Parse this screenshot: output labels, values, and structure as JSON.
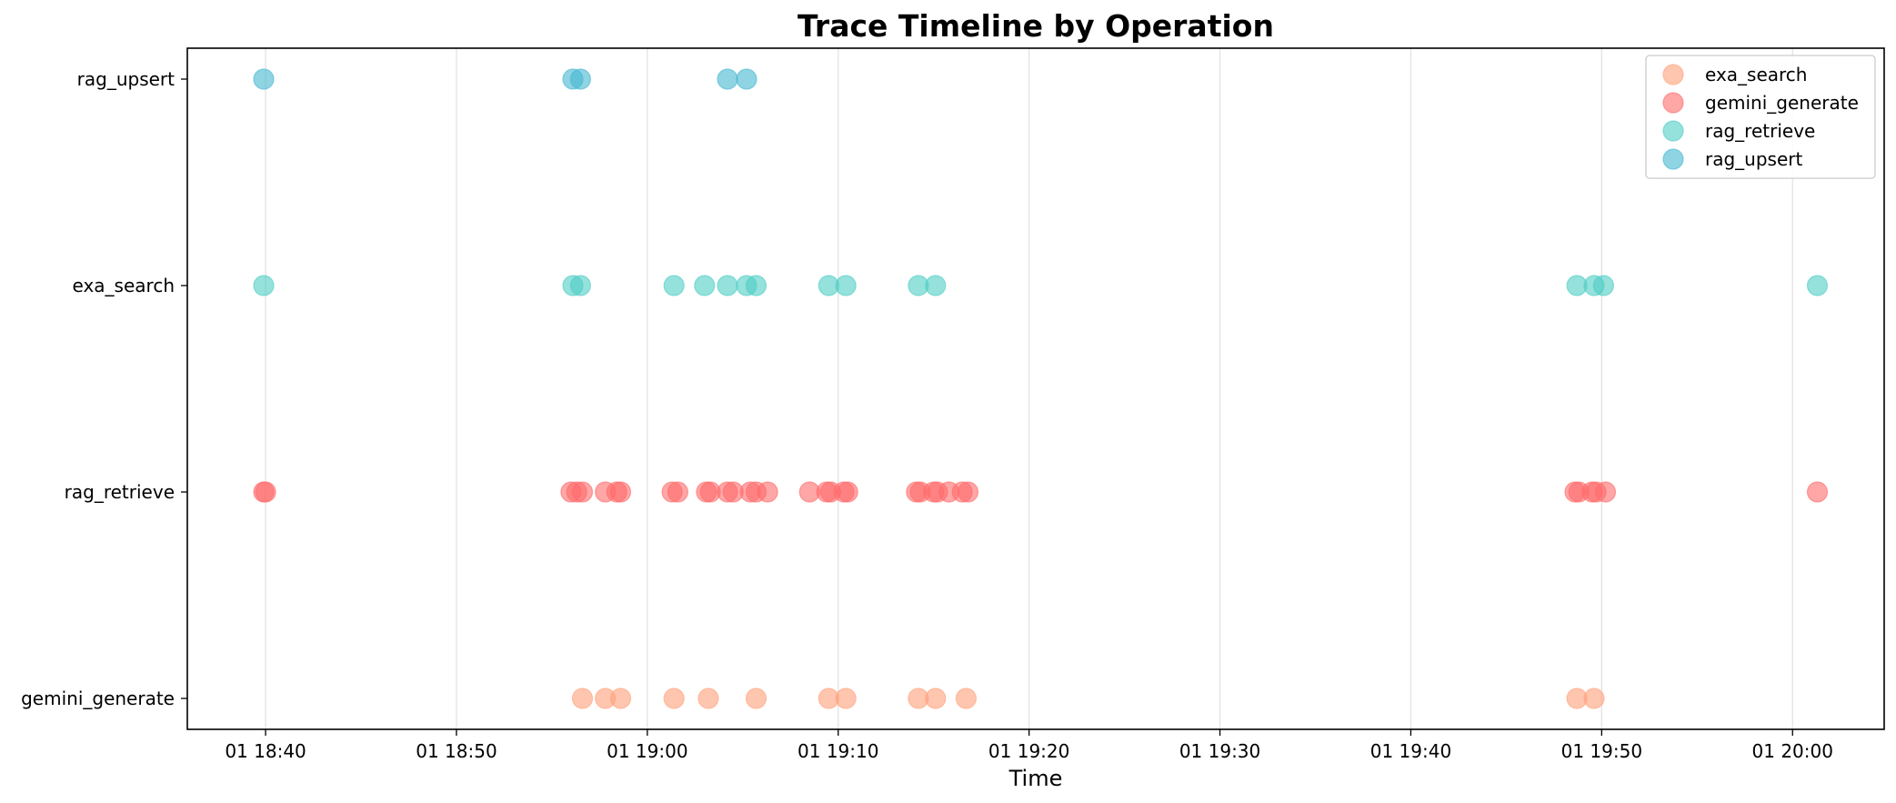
{
  "chart_data": {
    "type": "scatter",
    "title": "Trace Timeline by Operation",
    "xlabel": "Time",
    "ylabel": "",
    "x_ticks": [
      "01 18:40",
      "01 18:50",
      "01 19:00",
      "01 19:10",
      "01 19:20",
      "01 19:30",
      "01 19:40",
      "01 19:50",
      "01 20:00"
    ],
    "x_tick_minutes": [
      0,
      10,
      20,
      30,
      40,
      50,
      60,
      70,
      80
    ],
    "xlim_minutes": [
      -4.1,
      84.8
    ],
    "y_categories": [
      "gemini_generate",
      "rag_retrieve",
      "exa_search",
      "rag_upsert"
    ],
    "grid": "x",
    "legend_position": "top-right",
    "marker_size": "large",
    "alpha": 0.6,
    "series": [
      {
        "name": "exa_search",
        "color": "#FFA07A",
        "points": [
          {
            "x": 16.6,
            "y": "gemini_generate"
          },
          {
            "x": 17.8,
            "y": "gemini_generate"
          },
          {
            "x": 18.6,
            "y": "gemini_generate"
          },
          {
            "x": 21.4,
            "y": "gemini_generate"
          },
          {
            "x": 23.2,
            "y": "gemini_generate"
          },
          {
            "x": 25.7,
            "y": "gemini_generate"
          },
          {
            "x": 29.5,
            "y": "gemini_generate"
          },
          {
            "x": 30.4,
            "y": "gemini_generate"
          },
          {
            "x": 34.2,
            "y": "gemini_generate"
          },
          {
            "x": 35.1,
            "y": "gemini_generate"
          },
          {
            "x": 36.7,
            "y": "gemini_generate"
          },
          {
            "x": 68.7,
            "y": "gemini_generate"
          },
          {
            "x": 69.6,
            "y": "gemini_generate"
          }
        ]
      },
      {
        "name": "gemini_generate",
        "color": "#FF6B6B",
        "points": [
          {
            "x": -0.1,
            "y": "rag_retrieve"
          },
          {
            "x": 0.0,
            "y": "rag_retrieve"
          },
          {
            "x": 16.0,
            "y": "rag_retrieve"
          },
          {
            "x": 16.3,
            "y": "rag_retrieve"
          },
          {
            "x": 16.6,
            "y": "rag_retrieve"
          },
          {
            "x": 17.8,
            "y": "rag_retrieve"
          },
          {
            "x": 18.4,
            "y": "rag_retrieve"
          },
          {
            "x": 18.6,
            "y": "rag_retrieve"
          },
          {
            "x": 21.3,
            "y": "rag_retrieve"
          },
          {
            "x": 21.6,
            "y": "rag_retrieve"
          },
          {
            "x": 23.1,
            "y": "rag_retrieve"
          },
          {
            "x": 23.3,
            "y": "rag_retrieve"
          },
          {
            "x": 24.2,
            "y": "rag_retrieve"
          },
          {
            "x": 24.5,
            "y": "rag_retrieve"
          },
          {
            "x": 25.4,
            "y": "rag_retrieve"
          },
          {
            "x": 25.7,
            "y": "rag_retrieve"
          },
          {
            "x": 26.3,
            "y": "rag_retrieve"
          },
          {
            "x": 28.5,
            "y": "rag_retrieve"
          },
          {
            "x": 29.4,
            "y": "rag_retrieve"
          },
          {
            "x": 29.6,
            "y": "rag_retrieve"
          },
          {
            "x": 30.3,
            "y": "rag_retrieve"
          },
          {
            "x": 30.5,
            "y": "rag_retrieve"
          },
          {
            "x": 34.1,
            "y": "rag_retrieve"
          },
          {
            "x": 34.3,
            "y": "rag_retrieve"
          },
          {
            "x": 35.0,
            "y": "rag_retrieve"
          },
          {
            "x": 35.2,
            "y": "rag_retrieve"
          },
          {
            "x": 35.8,
            "y": "rag_retrieve"
          },
          {
            "x": 36.5,
            "y": "rag_retrieve"
          },
          {
            "x": 36.8,
            "y": "rag_retrieve"
          },
          {
            "x": 68.6,
            "y": "rag_retrieve"
          },
          {
            "x": 68.8,
            "y": "rag_retrieve"
          },
          {
            "x": 69.5,
            "y": "rag_retrieve"
          },
          {
            "x": 69.7,
            "y": "rag_retrieve"
          },
          {
            "x": 70.2,
            "y": "rag_retrieve"
          },
          {
            "x": 81.3,
            "y": "rag_retrieve"
          }
        ]
      },
      {
        "name": "rag_retrieve",
        "color": "#4ECDC4",
        "points": [
          {
            "x": -0.1,
            "y": "exa_search"
          },
          {
            "x": 16.1,
            "y": "exa_search"
          },
          {
            "x": 16.5,
            "y": "exa_search"
          },
          {
            "x": 21.4,
            "y": "exa_search"
          },
          {
            "x": 23.0,
            "y": "exa_search"
          },
          {
            "x": 24.2,
            "y": "exa_search"
          },
          {
            "x": 25.2,
            "y": "exa_search"
          },
          {
            "x": 25.7,
            "y": "exa_search"
          },
          {
            "x": 29.5,
            "y": "exa_search"
          },
          {
            "x": 30.4,
            "y": "exa_search"
          },
          {
            "x": 34.2,
            "y": "exa_search"
          },
          {
            "x": 35.1,
            "y": "exa_search"
          },
          {
            "x": 68.7,
            "y": "exa_search"
          },
          {
            "x": 69.6,
            "y": "exa_search"
          },
          {
            "x": 70.1,
            "y": "exa_search"
          },
          {
            "x": 81.3,
            "y": "exa_search"
          }
        ]
      },
      {
        "name": "rag_upsert",
        "color": "#45B7D1",
        "points": [
          {
            "x": -0.1,
            "y": "rag_upsert"
          },
          {
            "x": 16.1,
            "y": "rag_upsert"
          },
          {
            "x": 16.5,
            "y": "rag_upsert"
          },
          {
            "x": 24.2,
            "y": "rag_upsert"
          },
          {
            "x": 25.2,
            "y": "rag_upsert"
          }
        ]
      }
    ]
  }
}
